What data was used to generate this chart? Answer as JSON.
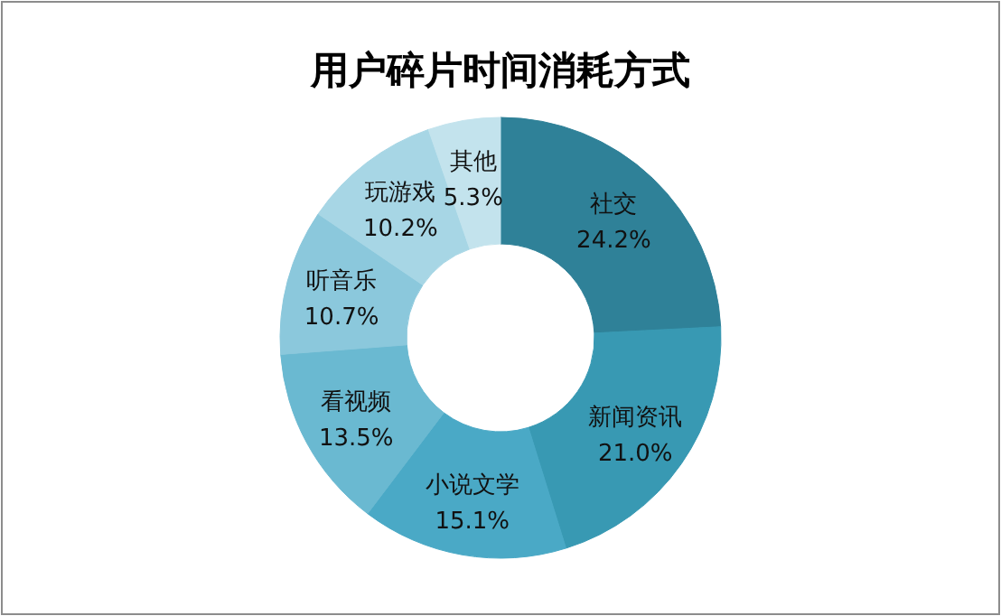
{
  "chart_data": {
    "type": "donut",
    "title": "用户碎片时间消耗方式",
    "categories": [
      "社交",
      "新闻资讯",
      "小说文学",
      "看视频",
      "听音乐",
      "玩游戏",
      "其他"
    ],
    "values": [
      24.2,
      21.0,
      15.1,
      13.5,
      10.7,
      10.2,
      5.3
    ],
    "value_labels": [
      "24.2%",
      "21.0%",
      "15.1%",
      "13.5%",
      "10.7%",
      "10.2%",
      "5.3%"
    ],
    "colors": [
      "#2f8198",
      "#3899b3",
      "#4aa9c6",
      "#6ab9d1",
      "#8bc8dc",
      "#a7d6e5",
      "#c3e3ed"
    ]
  }
}
